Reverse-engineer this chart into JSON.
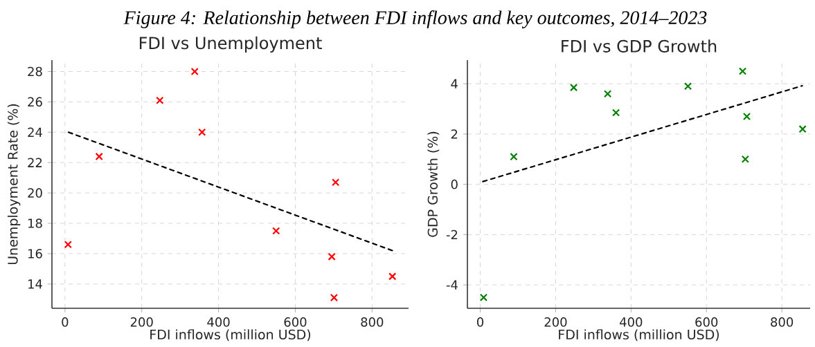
{
  "chart_data": [
    {
      "type": "scatter",
      "title": "FDI vs Unemployment",
      "annotations": [
        "Figure 4: Relationship between FDI inflows and key outcomes, 2014–2023"
      ],
      "xlabel": "FDI inflows (million USD)",
      "ylabel": "Unemployment Rate (%)",
      "xlim": [
        -34,
        895
      ],
      "ylim": [
        12.4,
        28.75
      ],
      "xticks": [
        0,
        200,
        400,
        600,
        800
      ],
      "yticks": [
        14,
        16,
        18,
        20,
        22,
        24,
        26,
        28
      ],
      "grid": true,
      "series": [
        {
          "marker": "cross",
          "color": "#ff0000",
          "x": [
            8,
            89,
            247,
            338,
            357,
            550,
            705,
            695,
            701,
            853
          ],
          "values": [
            16.6,
            22.4,
            26.1,
            28.0,
            24.0,
            17.5,
            20.7,
            15.8,
            13.1,
            14.5
          ]
        },
        {
          "type": "line",
          "marker": "none",
          "line_style": "dashed",
          "color": "#000000",
          "x": [
            9,
            853
          ],
          "values": [
            24.0,
            16.2
          ]
        }
      ]
    },
    {
      "type": "scatter",
      "title": "FDI vs GDP Growth",
      "xlabel": "FDI inflows (million USD)",
      "ylabel": "GDP Growth (%)",
      "xlim": [
        -34,
        875
      ],
      "ylim": [
        -4.93,
        4.94
      ],
      "xticks": [
        0,
        200,
        400,
        600,
        800
      ],
      "yticks": [
        -4,
        -2,
        0,
        2,
        4
      ],
      "grid": true,
      "series": [
        {
          "marker": "cross",
          "color": "#008000",
          "x": [
            9,
            89,
            248,
            338,
            360,
            551,
            696,
            707,
            703,
            855
          ],
          "values": [
            -4.5,
            1.1,
            3.85,
            3.6,
            2.85,
            3.9,
            4.5,
            2.7,
            1.0,
            2.2
          ]
        },
        {
          "type": "line",
          "marker": "none",
          "line_style": "dashed",
          "color": "#000000",
          "x": [
            7,
            854
          ],
          "values": [
            0.11,
            3.92
          ]
        }
      ]
    }
  ]
}
